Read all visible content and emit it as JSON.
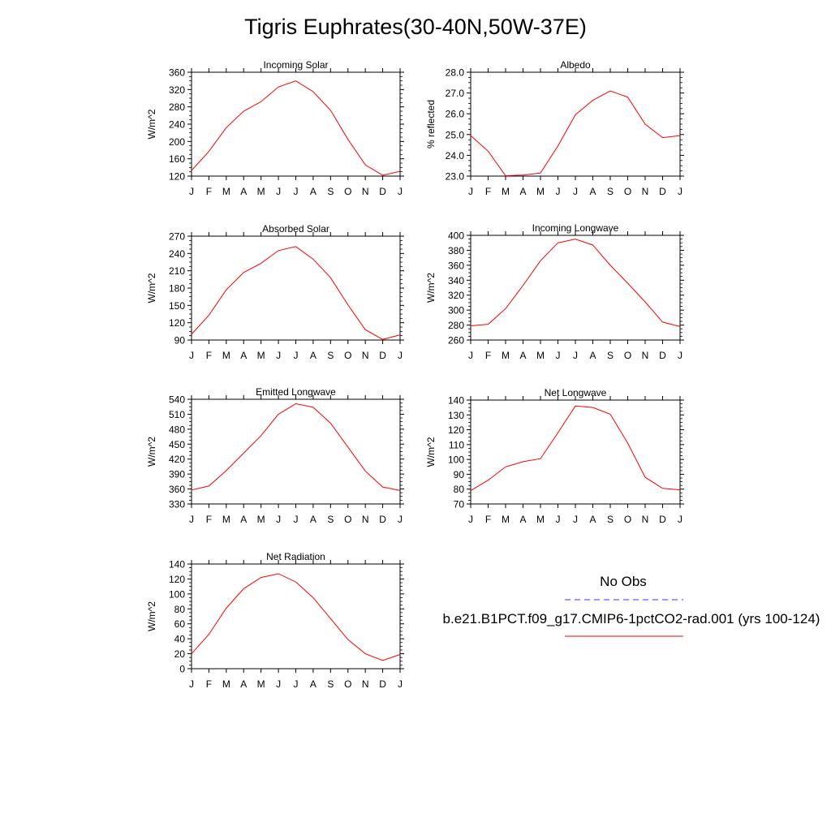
{
  "figure": {
    "title": "Tigris Euphrates(30-40N,50W-37E)"
  },
  "legend": {
    "obs_label": "No Obs",
    "model_label": "b.e21.B1PCT.f09_g17.CMIP6-1pctCO2-rad.001 (yrs 100-124)",
    "obs_color": "#3333ff",
    "model_color": "#ff0000"
  },
  "chart_data": [
    {
      "type": "line",
      "title": "Incoming Solar",
      "ylabel": "W/m^2",
      "categories": [
        "J",
        "F",
        "M",
        "A",
        "M",
        "J",
        "J",
        "A",
        "S",
        "O",
        "N",
        "D",
        "J"
      ],
      "ylim": [
        120,
        360
      ],
      "yticks": [
        "120",
        "160",
        "200",
        "240",
        "280",
        "320",
        "360"
      ],
      "series": [
        {
          "values": [
            133,
            177,
            232,
            270,
            292,
            326,
            340,
            315,
            272,
            205,
            146,
            122,
            131
          ]
        }
      ]
    },
    {
      "type": "line",
      "title": "Albedo",
      "ylabel": "% reflected",
      "categories": [
        "J",
        "F",
        "M",
        "A",
        "M",
        "J",
        "J",
        "A",
        "S",
        "O",
        "N",
        "D",
        "J"
      ],
      "ylim": [
        23.0,
        28.0
      ],
      "yticks": [
        "23.0",
        "24.0",
        "25.0",
        "26.0",
        "27.0",
        "28.0"
      ],
      "series": [
        {
          "values": [
            24.95,
            24.2,
            23.02,
            23.05,
            23.15,
            24.45,
            25.95,
            26.65,
            27.1,
            26.8,
            25.5,
            24.85,
            24.95
          ]
        }
      ]
    },
    {
      "type": "line",
      "title": "Absorbed Solar",
      "ylabel": "W/m^2",
      "categories": [
        "J",
        "F",
        "M",
        "A",
        "M",
        "J",
        "J",
        "A",
        "S",
        "O",
        "N",
        "D",
        "J"
      ],
      "ylim": [
        90,
        270
      ],
      "yticks": [
        "90",
        "120",
        "150",
        "180",
        "210",
        "240",
        "270"
      ],
      "series": [
        {
          "values": [
            100,
            133,
            177,
            207,
            223,
            245,
            252,
            230,
            198,
            151,
            108,
            91,
            99
          ]
        }
      ]
    },
    {
      "type": "line",
      "title": "Incoming Longwave",
      "ylabel": "W/m^2",
      "categories": [
        "J",
        "F",
        "M",
        "A",
        "M",
        "J",
        "J",
        "A",
        "S",
        "O",
        "N",
        "D",
        "J"
      ],
      "ylim": [
        260,
        400
      ],
      "yticks": [
        "260",
        "280",
        "300",
        "320",
        "340",
        "360",
        "380",
        "400"
      ],
      "series": [
        {
          "values": [
            279,
            281,
            302,
            333,
            366,
            390,
            395,
            387,
            360,
            336,
            311,
            284,
            278
          ]
        }
      ]
    },
    {
      "type": "line",
      "title": "Emitted Longwave",
      "ylabel": "W/m^2",
      "categories": [
        "J",
        "F",
        "M",
        "A",
        "M",
        "J",
        "J",
        "A",
        "S",
        "O",
        "N",
        "D",
        "J"
      ],
      "ylim": [
        330,
        540
      ],
      "yticks": [
        "330",
        "360",
        "390",
        "420",
        "450",
        "480",
        "510",
        "540"
      ],
      "series": [
        {
          "values": [
            358,
            366,
            397,
            432,
            467,
            510,
            531,
            524,
            492,
            444,
            396,
            364,
            357
          ]
        }
      ]
    },
    {
      "type": "line",
      "title": "Net Longwave",
      "ylabel": "W/m^2",
      "categories": [
        "J",
        "F",
        "M",
        "A",
        "M",
        "J",
        "J",
        "A",
        "S",
        "O",
        "N",
        "D",
        "J"
      ],
      "ylim": [
        70,
        140
      ],
      "yticks": [
        "70",
        "80",
        "90",
        "100",
        "110",
        "120",
        "130",
        "140"
      ],
      "series": [
        {
          "values": [
            79,
            86,
            95,
            98.5,
            100.5,
            118,
            136,
            135,
            130.5,
            111,
            88,
            80.5,
            79.5
          ]
        }
      ]
    },
    {
      "type": "line",
      "title": "Net Radiation",
      "ylabel": "W/m^2",
      "categories": [
        "J",
        "F",
        "M",
        "A",
        "M",
        "J",
        "J",
        "A",
        "S",
        "O",
        "N",
        "D",
        "J"
      ],
      "ylim": [
        0,
        140
      ],
      "yticks": [
        "0",
        "20",
        "40",
        "60",
        "80",
        "100",
        "120",
        "140"
      ],
      "series": [
        {
          "values": [
            20,
            46,
            81,
            107,
            122,
            127,
            116,
            95,
            67,
            39,
            20,
            11,
            19
          ]
        }
      ]
    }
  ]
}
